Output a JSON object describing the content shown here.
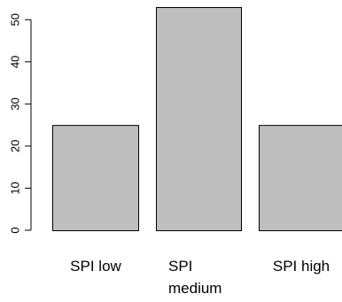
{
  "chart_data": {
    "type": "bar",
    "categories": [
      "SPI low",
      "SPI medium",
      "SPI high"
    ],
    "category_lines": [
      [
        "SPI low"
      ],
      [
        "SPI",
        "medium"
      ],
      [
        "SPI high"
      ]
    ],
    "values": [
      25,
      53,
      25
    ],
    "yticks": [
      0,
      10,
      20,
      30,
      40,
      50
    ],
    "ylim": [
      0,
      53
    ],
    "title": "",
    "xlabel": "",
    "ylabel": "",
    "grid": false,
    "bar_color": "#bebebe",
    "bar_stroke": "#000000"
  }
}
